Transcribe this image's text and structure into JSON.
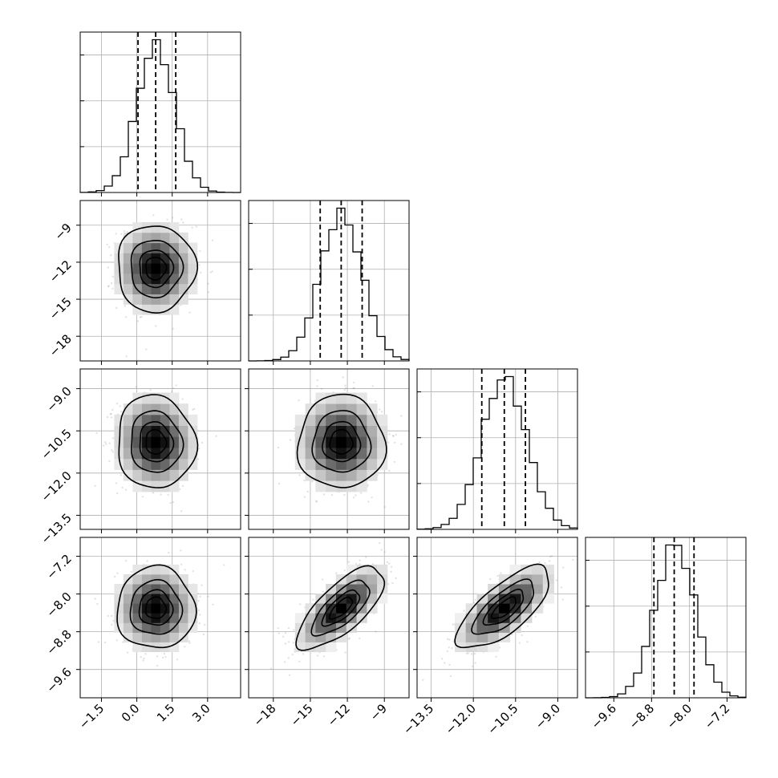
{
  "chart_data": {
    "type": "corner",
    "grid": true,
    "parameters": [
      {
        "id": "p0",
        "mean": 0.8,
        "sd": 0.8,
        "range": [
          -2.4,
          4.4
        ],
        "quantiles": [
          0.05,
          0.8,
          1.65
        ],
        "ticks": [
          -1.5,
          0.0,
          1.5,
          3.0
        ],
        "tick_labels": [
          "−1.5",
          "0.0",
          "1.5",
          "3.0"
        ]
      },
      {
        "id": "p1",
        "mean": -12.5,
        "sd": 1.7,
        "range": [
          -20.0,
          -7.0
        ],
        "quantiles": [
          -14.2,
          -12.5,
          -10.8
        ],
        "ticks": [
          -18,
          -15,
          -12,
          -9
        ],
        "tick_labels": [
          "−18",
          "−15",
          "−12",
          "−9"
        ]
      },
      {
        "id": "p2",
        "mean": -10.9,
        "sd": 0.8,
        "range": [
          -14.0,
          -8.3
        ],
        "quantiles": [
          -11.7,
          -10.9,
          -10.15
        ],
        "ticks": [
          -13.5,
          -12.0,
          -10.5,
          -9.0
        ],
        "tick_labels": [
          "−13.5",
          "−12.0",
          "−10.5",
          "−9.0"
        ]
      },
      {
        "id": "p3",
        "mean": -8.3,
        "sd": 0.42,
        "range": [
          -10.2,
          -6.8
        ],
        "quantiles": [
          -8.75,
          -8.32,
          -7.9
        ],
        "ticks": [
          -9.6,
          -8.8,
          -8.0,
          -7.2
        ],
        "tick_labels": [
          "−9.6",
          "−8.8",
          "−8.0",
          "−7.2"
        ]
      }
    ],
    "correlations": [
      [
        0,
        1,
        0.0
      ],
      [
        0,
        2,
        -0.05
      ],
      [
        0,
        3,
        0.0
      ],
      [
        1,
        2,
        0.0
      ],
      [
        1,
        3,
        0.72
      ],
      [
        2,
        3,
        0.72
      ]
    ],
    "contour_levels_sigma": [
      0.5,
      1.0,
      1.5,
      2.0
    ]
  }
}
